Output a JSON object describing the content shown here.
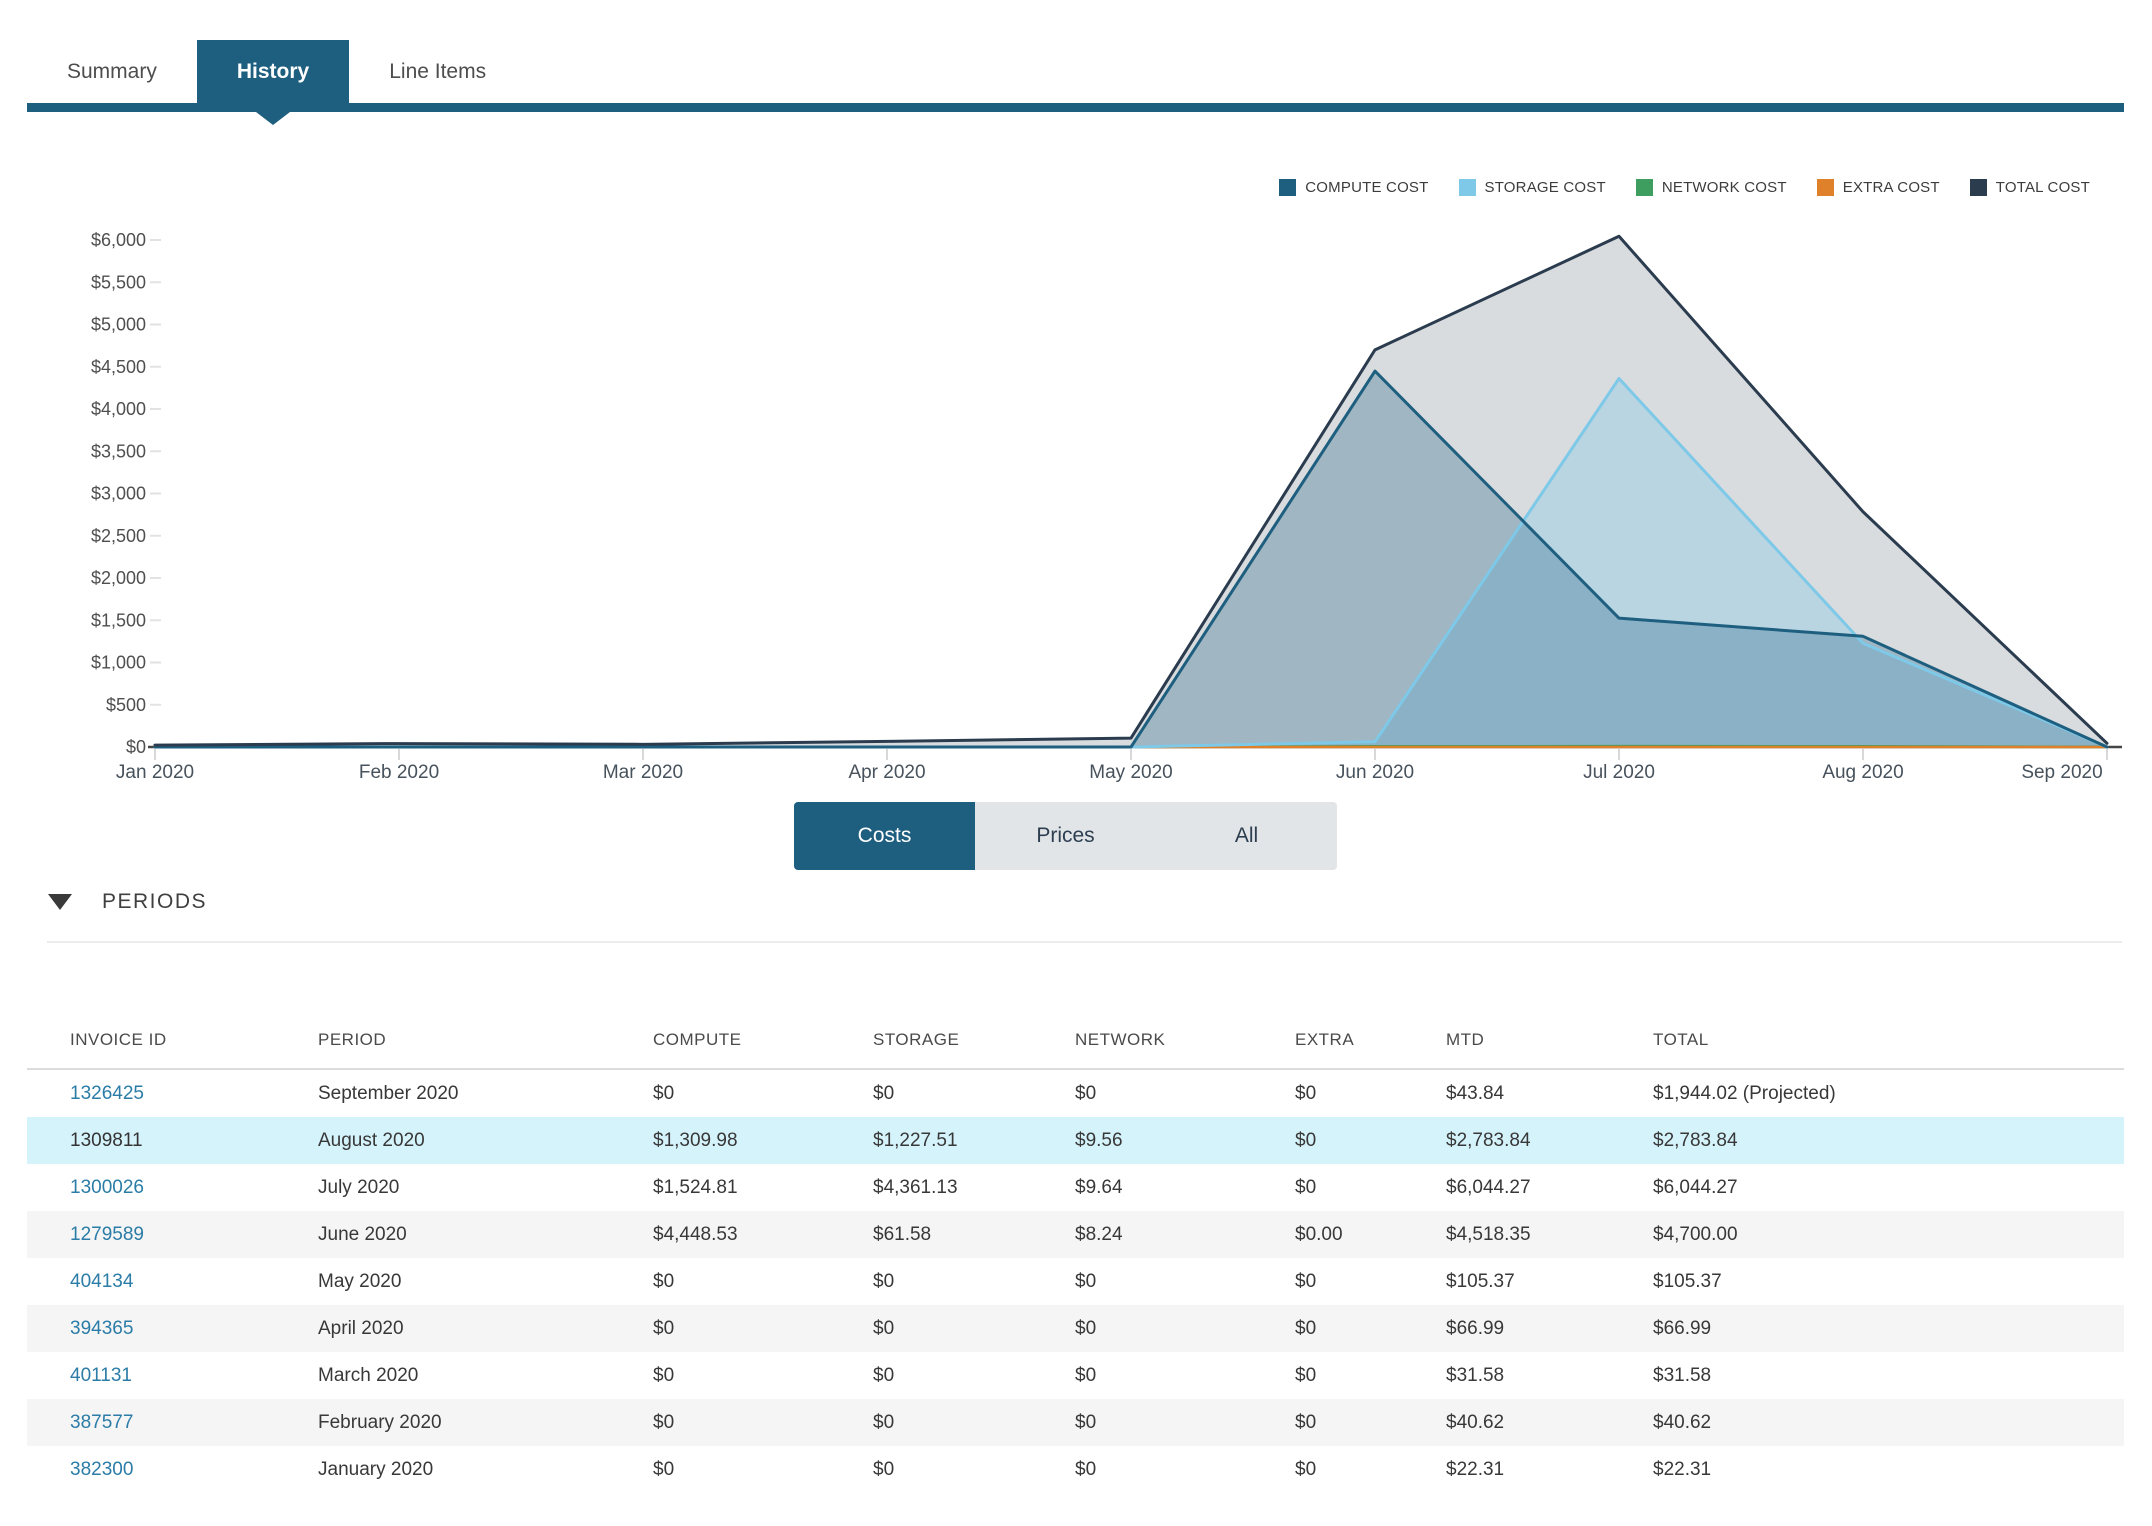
{
  "tabs": [
    {
      "label": "Summary",
      "active": false
    },
    {
      "label": "History",
      "active": true
    },
    {
      "label": "Line Items",
      "active": false
    }
  ],
  "accent_color": "#1e5f80",
  "legend": [
    {
      "label": "COMPUTE COST",
      "color": "#1e5f80"
    },
    {
      "label": "STORAGE COST",
      "color": "#7ec8e8"
    },
    {
      "label": "NETWORK COST",
      "color": "#3d9e5f"
    },
    {
      "label": "EXTRA COST",
      "color": "#df812a"
    },
    {
      "label": "TOTAL COST",
      "color": "#2b3c4f"
    }
  ],
  "chart_data": {
    "type": "area",
    "title": "",
    "categories": [
      "Jan 2020",
      "Feb 2020",
      "Mar 2020",
      "Apr 2020",
      "May 2020",
      "Jun 2020",
      "Jul 2020",
      "Aug 2020",
      "Sep 2020"
    ],
    "ytick_labels": [
      "$0",
      "$500",
      "$1,000",
      "$1,500",
      "$2,000",
      "$2,500",
      "$3,000",
      "$3,500",
      "$4,000",
      "$4,500",
      "$5,000",
      "$5,500",
      "$6,000"
    ],
    "ylim": [
      0,
      6000
    ],
    "grid": false,
    "legend_position": "top-right",
    "series": [
      {
        "name": "COMPUTE COST",
        "color": "#1e5f80",
        "values": [
          0,
          0,
          0,
          0,
          0,
          4448.53,
          1524.81,
          1309.98,
          0
        ]
      },
      {
        "name": "STORAGE COST",
        "color": "#7ec8e8",
        "values": [
          0,
          0,
          0,
          0,
          0,
          61.58,
          4361.13,
          1227.51,
          0
        ]
      },
      {
        "name": "NETWORK COST",
        "color": "#3d9e5f",
        "values": [
          0,
          0,
          0,
          0,
          0,
          8.24,
          9.64,
          9.56,
          0
        ]
      },
      {
        "name": "EXTRA COST",
        "color": "#df812a",
        "values": [
          0,
          0,
          0,
          0,
          0,
          0,
          0,
          0,
          0
        ]
      },
      {
        "name": "TOTAL COST",
        "color": "#2b3c4f",
        "values": [
          22.31,
          40.62,
          31.58,
          66.99,
          105.37,
          4700.0,
          6044.27,
          2783.84,
          43.84
        ]
      }
    ]
  },
  "toggle": {
    "options": [
      "Costs",
      "Prices",
      "All"
    ],
    "selected": "Costs"
  },
  "periods_section": {
    "title": "PERIODS"
  },
  "table": {
    "headers": [
      "INVOICE ID",
      "PERIOD",
      "COMPUTE",
      "STORAGE",
      "NETWORK",
      "EXTRA",
      "MTD",
      "TOTAL"
    ],
    "rows": [
      {
        "invoice_id": "1326425",
        "link": true,
        "highlighted": false,
        "period": "September 2020",
        "compute": "$0",
        "storage": "$0",
        "network": "$0",
        "extra": "$0",
        "mtd": "$43.84",
        "total": "$1,944.02 (Projected)"
      },
      {
        "invoice_id": "1309811",
        "link": false,
        "highlighted": true,
        "period": "August 2020",
        "compute": "$1,309.98",
        "storage": "$1,227.51",
        "network": "$9.56",
        "extra": "$0",
        "mtd": "$2,783.84",
        "total": "$2,783.84"
      },
      {
        "invoice_id": "1300026",
        "link": true,
        "highlighted": false,
        "period": "July 2020",
        "compute": "$1,524.81",
        "storage": "$4,361.13",
        "network": "$9.64",
        "extra": "$0",
        "mtd": "$6,044.27",
        "total": "$6,044.27"
      },
      {
        "invoice_id": "1279589",
        "link": true,
        "highlighted": false,
        "period": "June 2020",
        "compute": "$4,448.53",
        "storage": "$61.58",
        "network": "$8.24",
        "extra": "$0.00",
        "mtd": "$4,518.35",
        "total": "$4,700.00"
      },
      {
        "invoice_id": "404134",
        "link": true,
        "highlighted": false,
        "period": "May 2020",
        "compute": "$0",
        "storage": "$0",
        "network": "$0",
        "extra": "$0",
        "mtd": "$105.37",
        "total": "$105.37"
      },
      {
        "invoice_id": "394365",
        "link": true,
        "highlighted": false,
        "period": "April 2020",
        "compute": "$0",
        "storage": "$0",
        "network": "$0",
        "extra": "$0",
        "mtd": "$66.99",
        "total": "$66.99"
      },
      {
        "invoice_id": "401131",
        "link": true,
        "highlighted": false,
        "period": "March 2020",
        "compute": "$0",
        "storage": "$0",
        "network": "$0",
        "extra": "$0",
        "mtd": "$31.58",
        "total": "$31.58"
      },
      {
        "invoice_id": "387577",
        "link": true,
        "highlighted": false,
        "period": "February 2020",
        "compute": "$0",
        "storage": "$0",
        "network": "$0",
        "extra": "$0",
        "mtd": "$40.62",
        "total": "$40.62"
      },
      {
        "invoice_id": "382300",
        "link": true,
        "highlighted": false,
        "period": "January 2020",
        "compute": "$0",
        "storage": "$0",
        "network": "$0",
        "extra": "$0",
        "mtd": "$22.31",
        "total": "$22.31"
      }
    ]
  }
}
